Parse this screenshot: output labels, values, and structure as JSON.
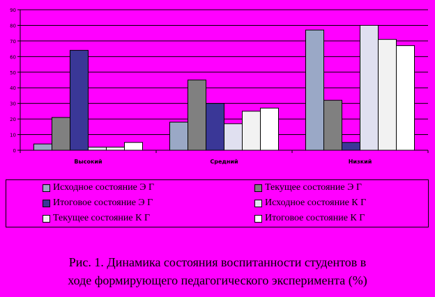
{
  "chart_data": {
    "type": "bar",
    "categories": [
      "Высокий",
      "Средний",
      "Низкий"
    ],
    "series": [
      {
        "name": "Исходное состояние Э Г",
        "color": "#9aa8c6",
        "values": [
          4,
          18,
          77
        ]
      },
      {
        "name": "Текущее состояние Э Г",
        "color": "#808080",
        "values": [
          21,
          45,
          32
        ]
      },
      {
        "name": "Итоговое состояние Э Г",
        "color": "#3a3797",
        "values": [
          64,
          30,
          5
        ]
      },
      {
        "name": "Исходное состояние К Г",
        "color": "#e0e0f0",
        "values": [
          2,
          17,
          80
        ]
      },
      {
        "name": "Текущее состояние К Г",
        "color": "#f2f2f2",
        "values": [
          2,
          25,
          71
        ]
      },
      {
        "name": "Итоговое состояние К Г",
        "color": "#ffffff",
        "values": [
          5,
          27,
          67
        ]
      }
    ],
    "ylim": [
      0,
      90
    ],
    "yticks": [
      0,
      10,
      20,
      30,
      40,
      50,
      60,
      70,
      80,
      90
    ],
    "grid": true,
    "legend": "bottom"
  },
  "caption": {
    "line1": "Рис. 1. Динамика состояния воспитанности студентов в",
    "line2": "ходе формирующего педагогического эксперимента (%)"
  }
}
